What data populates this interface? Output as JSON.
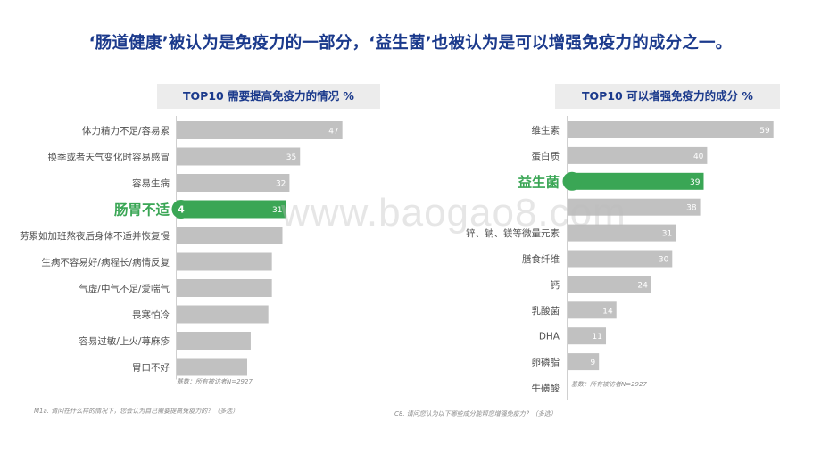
{
  "headline": "‘肠道健康’被认为是免疫力的一部分，‘益生菌’也被认为是可以增强免疫力的成分之一。",
  "watermark": "www.baogao8.com",
  "colors": {
    "bar": "#c1c1c1",
    "highlight": "#3aa655",
    "title": "#1b3a8c"
  },
  "chart_data": [
    {
      "type": "bar",
      "orientation": "horizontal",
      "title": "TOP10 需要提高免疫力的情况 %",
      "categories": [
        "体力精力不足/容易累",
        "换季或者天气变化时容易感冒",
        "容易生病",
        "肠胃不适",
        "劳累如加班熬夜后身体不适并恢复慢",
        "生病不容易好/病程长/病情反复",
        "气虚/中气不足/爱喘气",
        "畏寒怕冷",
        "容易过敏/上火/荨麻疹",
        "胃口不好"
      ],
      "values": [
        47,
        35,
        32,
        31,
        30,
        27,
        27,
        26,
        21,
        20
      ],
      "value_labels": [
        "47",
        "35",
        "32",
        "31",
        "",
        "",
        "",
        "",
        "",
        ""
      ],
      "highlight_index": 3,
      "highlight_marker": "4",
      "base_note": "基数：所有被访者N=2927",
      "question_note": "M1a. 请问在什么样的情况下，您会认为自己需要提高免疫力的？（多选）"
    },
    {
      "type": "bar",
      "orientation": "horizontal",
      "title": "TOP10 可以增强免疫力的成分 %",
      "categories": [
        "维生素",
        "蛋白质",
        "益生菌",
        "",
        "锌、钠、镁等微量元素",
        "膳食纤维",
        "钙",
        "乳酸菌",
        "DHA",
        "卵磷脂",
        "牛磺酸"
      ],
      "values": [
        59,
        40,
        39,
        38,
        31,
        30,
        24,
        14,
        11,
        9,
        null
      ],
      "value_labels": [
        "59",
        "40",
        "39",
        "38",
        "31",
        "30",
        "24",
        "14",
        "11",
        "9",
        ""
      ],
      "highlight_index": 2,
      "base_note": "基数：所有被访者N=2927",
      "question_note": "C8. 请问您认为以下哪些成分能帮您增强免疫力？（多选）"
    }
  ]
}
